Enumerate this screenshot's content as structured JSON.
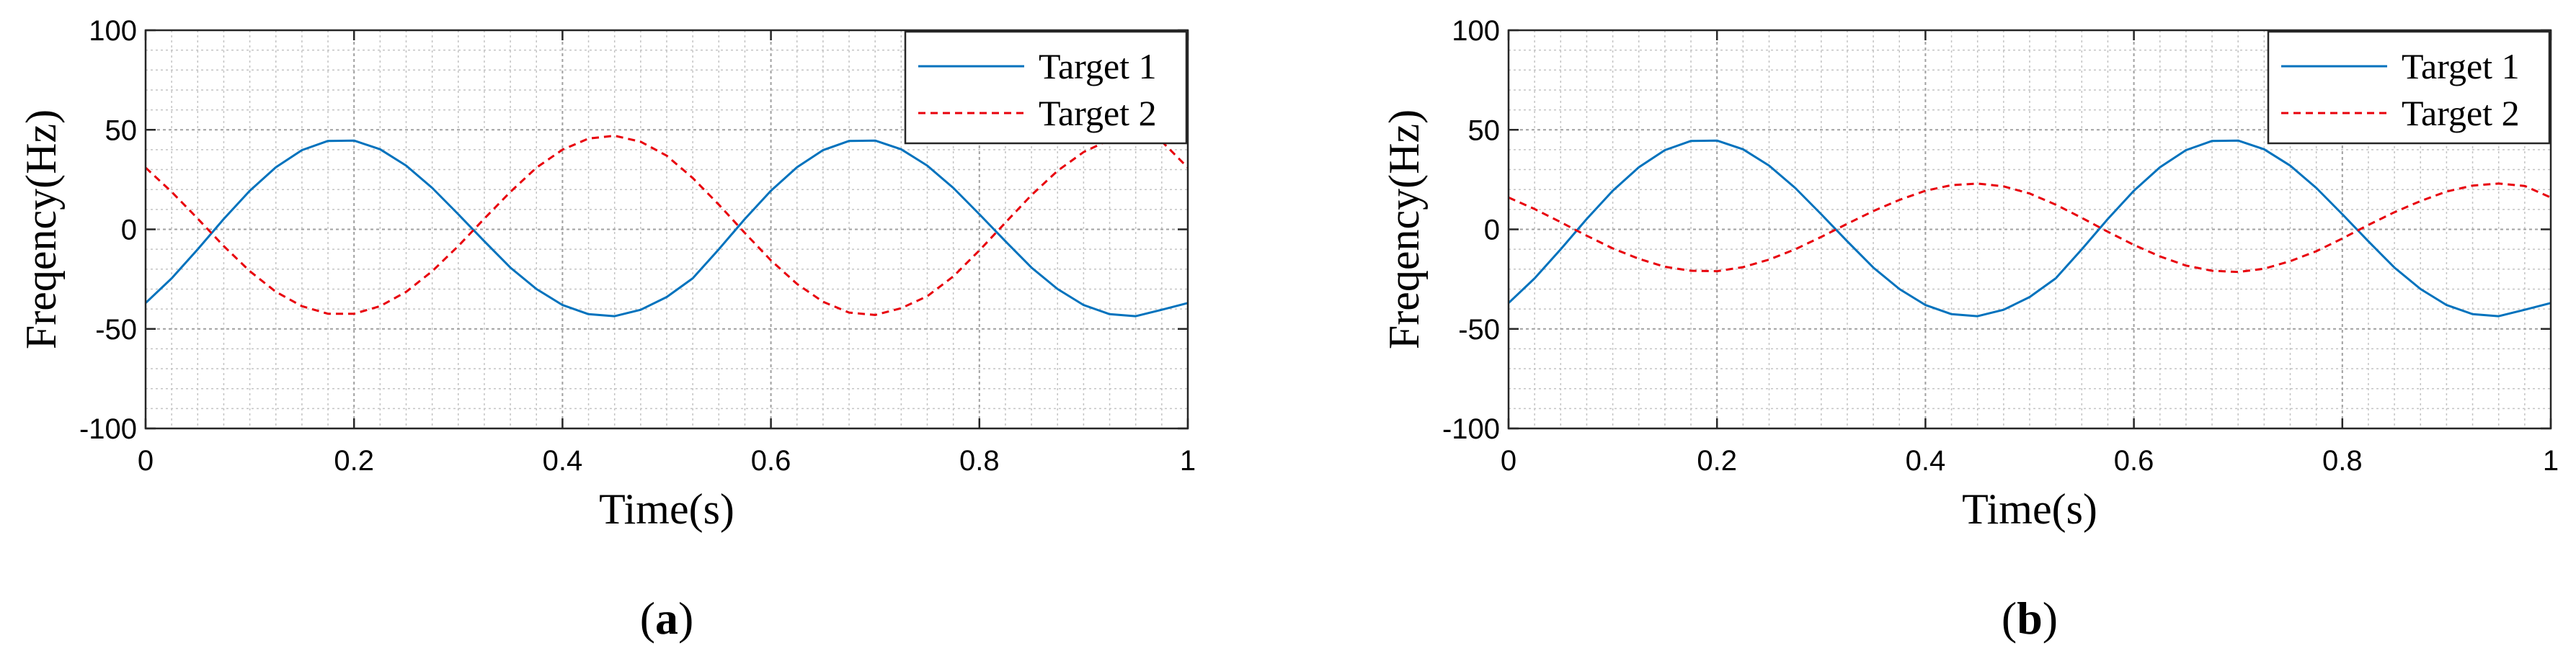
{
  "chart_data": [
    {
      "type": "line",
      "caption": {
        "open": "(",
        "letter": "a",
        "close": ")"
      },
      "xlabel": "Time(s)",
      "ylabel": "Freqency(Hz)",
      "xlim": [
        0,
        1
      ],
      "ylim": [
        -100,
        100
      ],
      "xticks": [
        0,
        0.2,
        0.4,
        0.6,
        0.8,
        1
      ],
      "xtick_labels": [
        "0",
        "0.2",
        "0.4",
        "0.6",
        "0.8",
        "1"
      ],
      "yticks": [
        -100,
        -50,
        0,
        50,
        100
      ],
      "ytick_labels": [
        "-100",
        "-50",
        "0",
        "50",
        "100"
      ],
      "grid": true,
      "minor_grid": true,
      "legend_position": "top-right",
      "series": [
        {
          "name": "Target 1",
          "color": "#0072bd",
          "style": "solid",
          "x": [
            0,
            0.025,
            0.05,
            0.075,
            0.1,
            0.125,
            0.15,
            0.175,
            0.2,
            0.225,
            0.25,
            0.275,
            0.3,
            0.325,
            0.35,
            0.375,
            0.4,
            0.425,
            0.45,
            0.475,
            0.5,
            0.525,
            0.55,
            0.575,
            0.6,
            0.625,
            0.65,
            0.675,
            0.7,
            0.725,
            0.75,
            0.775,
            0.8,
            0.825,
            0.85,
            0.875,
            0.9,
            0.925,
            0.95,
            0.975,
            1
          ],
          "y": [
            -37,
            -24.6,
            -10,
            5.2,
            19.4,
            31.2,
            39.8,
            44.4,
            44.6,
            40.2,
            32,
            20.8,
            7.6,
            -6,
            -19.2,
            -30,
            -38,
            -42.6,
            -43.6,
            -40.4,
            -34,
            -24.6,
            -10,
            5.2,
            19.4,
            31.2,
            39.8,
            44.4,
            44.6,
            40.2,
            32,
            20.8,
            7.6,
            -6,
            -19.2,
            -30,
            -38,
            -42.6,
            -43.6,
            -40.4,
            -37
          ]
        },
        {
          "name": "Target 2",
          "color": "#e8000b",
          "style": "dashed",
          "x": [
            0,
            0.025,
            0.05,
            0.075,
            0.1,
            0.125,
            0.15,
            0.175,
            0.2,
            0.225,
            0.25,
            0.275,
            0.3,
            0.325,
            0.35,
            0.375,
            0.4,
            0.425,
            0.45,
            0.475,
            0.5,
            0.525,
            0.55,
            0.575,
            0.6,
            0.625,
            0.65,
            0.675,
            0.7,
            0.725,
            0.75,
            0.775,
            0.8,
            0.825,
            0.85,
            0.875,
            0.9,
            0.925,
            0.95,
            0.975,
            1
          ],
          "y": [
            31,
            18.8,
            5.4,
            -8.4,
            -21,
            -31.4,
            -38.6,
            -42.4,
            -42.4,
            -38.6,
            -31.4,
            -21,
            -8.4,
            5.4,
            18.8,
            31,
            40,
            45.6,
            47,
            44,
            37,
            25.8,
            12.4,
            -1.8,
            -15.6,
            -27.4,
            -36.4,
            -41.8,
            -43,
            -39.6,
            -33.6,
            -23.6,
            -10.6,
            3.4,
            17.2,
            29.4,
            38.8,
            45,
            47,
            44.2,
            31
          ]
        }
      ]
    },
    {
      "type": "line",
      "caption": {
        "open": "(",
        "letter": "b",
        "close": ")"
      },
      "xlabel": "Time(s)",
      "ylabel": "Freqency(Hz)",
      "xlim": [
        0,
        1
      ],
      "ylim": [
        -100,
        100
      ],
      "xticks": [
        0,
        0.2,
        0.4,
        0.6,
        0.8,
        1
      ],
      "xtick_labels": [
        "0",
        "0.2",
        "0.4",
        "0.6",
        "0.8",
        "1"
      ],
      "yticks": [
        -100,
        -50,
        0,
        50,
        100
      ],
      "ytick_labels": [
        "-100",
        "-50",
        "0",
        "50",
        "100"
      ],
      "grid": true,
      "minor_grid": true,
      "legend_position": "top-right",
      "series": [
        {
          "name": "Target 1",
          "color": "#0072bd",
          "style": "solid",
          "x": [
            0,
            0.025,
            0.05,
            0.075,
            0.1,
            0.125,
            0.15,
            0.175,
            0.2,
            0.225,
            0.25,
            0.275,
            0.3,
            0.325,
            0.35,
            0.375,
            0.4,
            0.425,
            0.45,
            0.475,
            0.5,
            0.525,
            0.55,
            0.575,
            0.6,
            0.625,
            0.65,
            0.675,
            0.7,
            0.725,
            0.75,
            0.775,
            0.8,
            0.825,
            0.85,
            0.875,
            0.9,
            0.925,
            0.95,
            0.975,
            1
          ],
          "y": [
            -37,
            -24.6,
            -10,
            5.2,
            19.4,
            31.2,
            39.8,
            44.4,
            44.6,
            40.2,
            32,
            20.8,
            7.6,
            -6,
            -19.2,
            -30,
            -38,
            -42.6,
            -43.6,
            -40.4,
            -34,
            -24.6,
            -10,
            5.2,
            19.4,
            31.2,
            39.8,
            44.4,
            44.6,
            40.2,
            32,
            20.8,
            7.6,
            -6,
            -19.2,
            -30,
            -38,
            -42.6,
            -43.6,
            -40.4,
            -37
          ]
        },
        {
          "name": "Target 2",
          "color": "#e8000b",
          "style": "dashed",
          "x": [
            0,
            0.025,
            0.05,
            0.075,
            0.1,
            0.125,
            0.15,
            0.175,
            0.2,
            0.225,
            0.25,
            0.275,
            0.3,
            0.325,
            0.35,
            0.375,
            0.4,
            0.425,
            0.45,
            0.475,
            0.5,
            0.525,
            0.55,
            0.575,
            0.6,
            0.625,
            0.65,
            0.675,
            0.7,
            0.725,
            0.75,
            0.775,
            0.8,
            0.825,
            0.85,
            0.875,
            0.9,
            0.925,
            0.95,
            0.975,
            1
          ],
          "y": [
            16,
            10.2,
            3.6,
            -3.2,
            -9.6,
            -14.8,
            -18.8,
            -20.8,
            -21,
            -19,
            -15.2,
            -10,
            -3.8,
            2.8,
            9.2,
            14.8,
            19.4,
            22.2,
            23,
            21.6,
            18,
            12.4,
            5.8,
            -1.2,
            -7.8,
            -13.6,
            -18.2,
            -20.8,
            -21.4,
            -19.8,
            -16,
            -11,
            -4.6,
            2.2,
            8.6,
            14.2,
            19,
            22,
            23,
            21.8,
            16
          ]
        }
      ]
    }
  ]
}
